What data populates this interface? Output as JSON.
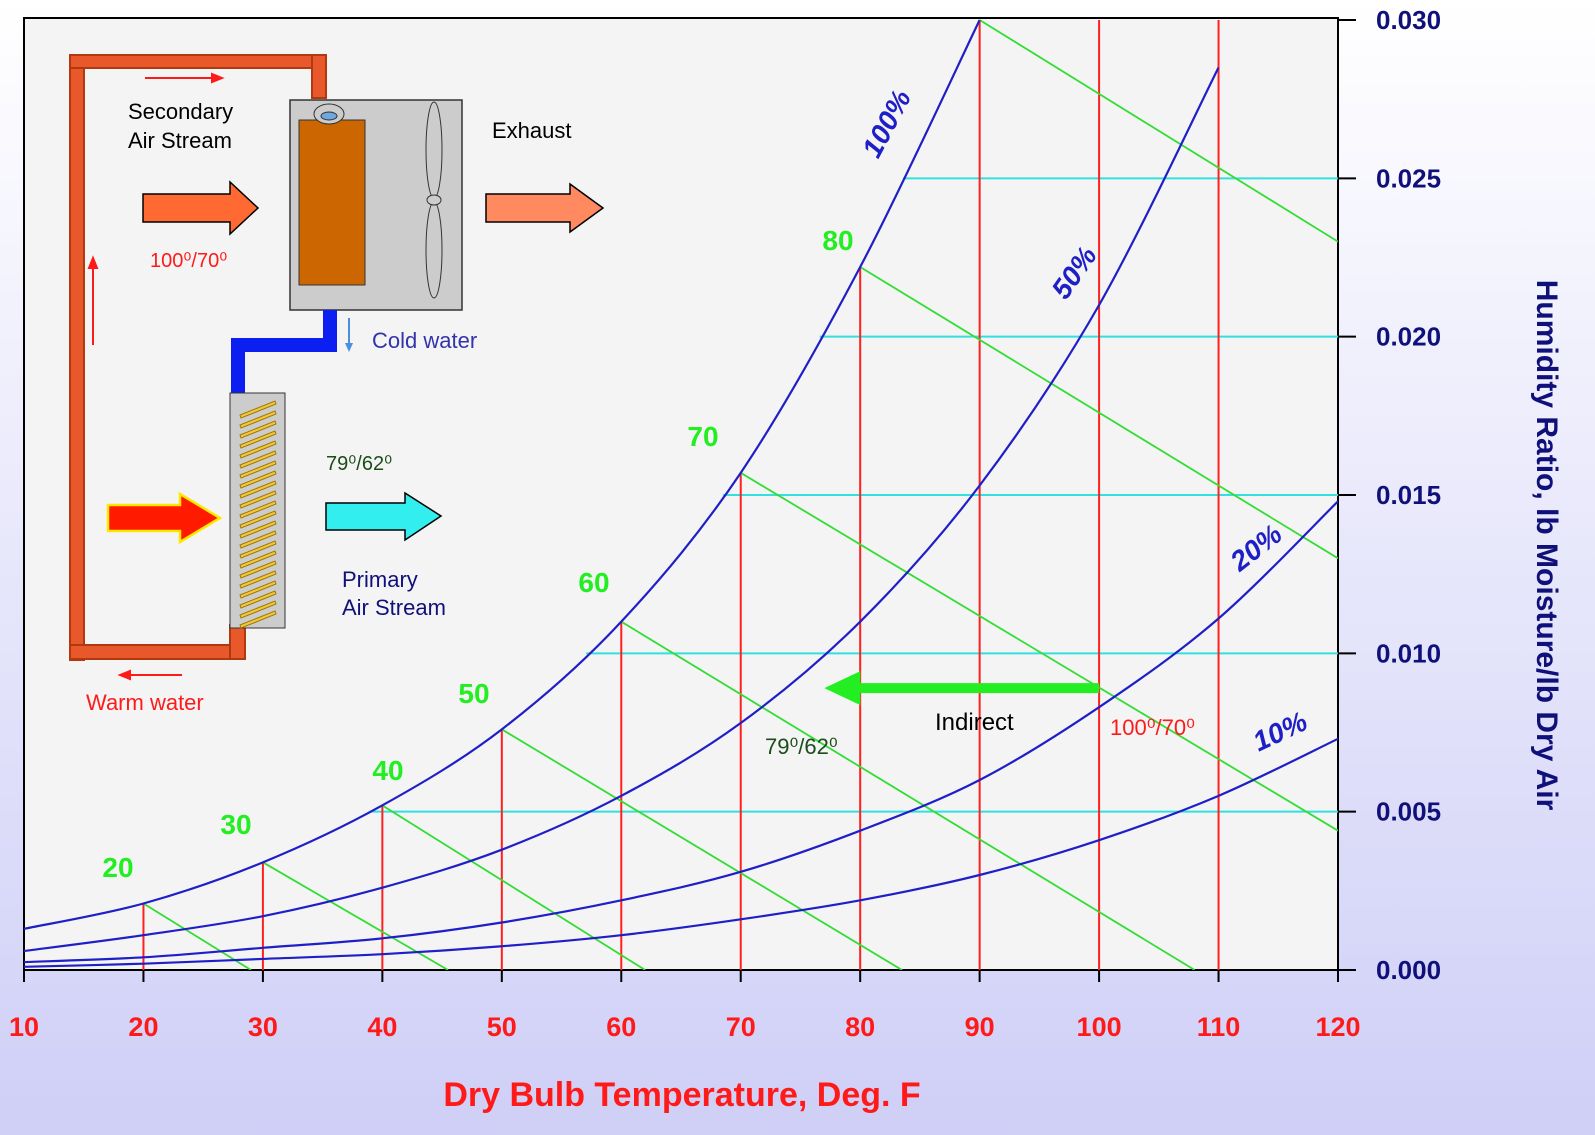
{
  "chart_data": {
    "type": "line",
    "x_label": "Dry Bulb Temperature, Deg. F",
    "y_label": "Humidity Ratio, lb Moisture/lb Dry Air",
    "x": [
      10,
      20,
      30,
      40,
      50,
      60,
      70,
      80,
      90,
      100,
      110,
      120
    ],
    "series": [
      {
        "name": "100%",
        "color": "#1f1fc8",
        "values": [
          0.0013,
          0.0021,
          0.0034,
          0.0052,
          0.0076,
          0.011,
          0.0157,
          0.0222,
          0.03,
          null,
          null,
          null
        ]
      },
      {
        "name": "50%",
        "color": "#1f1fc8",
        "values": [
          0.0006,
          0.0011,
          0.0017,
          0.0026,
          0.0038,
          0.0055,
          0.0078,
          0.011,
          0.0153,
          0.021,
          0.0285,
          null
        ]
      },
      {
        "name": "20%",
        "color": "#1f1fc8",
        "values": [
          0.00025,
          0.0004,
          0.0007,
          0.001,
          0.0015,
          0.0022,
          0.0031,
          0.0044,
          0.006,
          0.0083,
          0.0111,
          0.0148
        ]
      },
      {
        "name": "10%",
        "color": "#1f1fc8",
        "values": [
          0.0001,
          0.0002,
          0.00035,
          0.0005,
          0.00075,
          0.0011,
          0.0016,
          0.0022,
          0.003,
          0.0041,
          0.0055,
          0.0073
        ]
      }
    ],
    "xlim": [
      10,
      120
    ],
    "xticks": [
      10,
      20,
      30,
      40,
      50,
      60,
      70,
      80,
      90,
      100,
      110,
      120
    ],
    "ylim": [
      0,
      0.03
    ],
    "yticks": [
      {
        "value": 0,
        "label": "0.000"
      },
      {
        "value": 0.005,
        "label": "0.005"
      },
      {
        "value": 0.01,
        "label": "0.010"
      },
      {
        "value": 0.015,
        "label": "0.015"
      },
      {
        "value": 0.02,
        "label": "0.020"
      },
      {
        "value": 0.025,
        "label": "0.025"
      },
      {
        "value": 0.03,
        "label": "0.030"
      }
    ],
    "dry_bulb_lines": [
      20,
      30,
      40,
      50,
      60,
      70,
      80,
      90,
      100,
      110
    ],
    "humidity_lines": [
      0.005,
      0.01,
      0.015,
      0.02,
      0.025
    ],
    "wet_bulb_lines": [
      {
        "start": [
          20,
          0.0021
        ],
        "end": [
          29,
          0
        ]
      },
      {
        "start": [
          30,
          0.0034
        ],
        "end": [
          45.5,
          0
        ]
      },
      {
        "start": [
          40,
          0.0052
        ],
        "end": [
          62,
          0
        ]
      },
      {
        "start": [
          50,
          0.0076
        ],
        "end": [
          83.5,
          0
        ]
      },
      {
        "start": [
          60,
          0.011
        ],
        "end": [
          108,
          0
        ]
      },
      {
        "start": [
          70,
          0.0157
        ],
        "end": [
          120,
          0.0044
        ]
      },
      {
        "start": [
          80,
          0.0222
        ],
        "end": [
          120,
          0.013
        ]
      },
      {
        "start": [
          90,
          0.03
        ],
        "end": [
          120,
          0.023
        ]
      }
    ],
    "wet_bulb_labels": [
      20,
      30,
      40,
      50,
      60,
      70,
      80
    ],
    "arrow": {
      "from": [
        100,
        0.0089
      ],
      "to": [
        77,
        0.0089
      ],
      "label": "Indirect"
    },
    "annotations": [
      "79⁰/62⁰",
      "100⁰/70⁰"
    ]
  },
  "diagram": {
    "secondary": [
      "Secondary",
      "Air Stream"
    ],
    "exhaust": "Exhaust",
    "secondary_temp": "100⁰/70⁰",
    "cold_water": "Cold water",
    "primary_temp": "79⁰/62⁰",
    "primary": [
      "Primary",
      "Air Stream"
    ],
    "warm_water": "Warm water"
  }
}
